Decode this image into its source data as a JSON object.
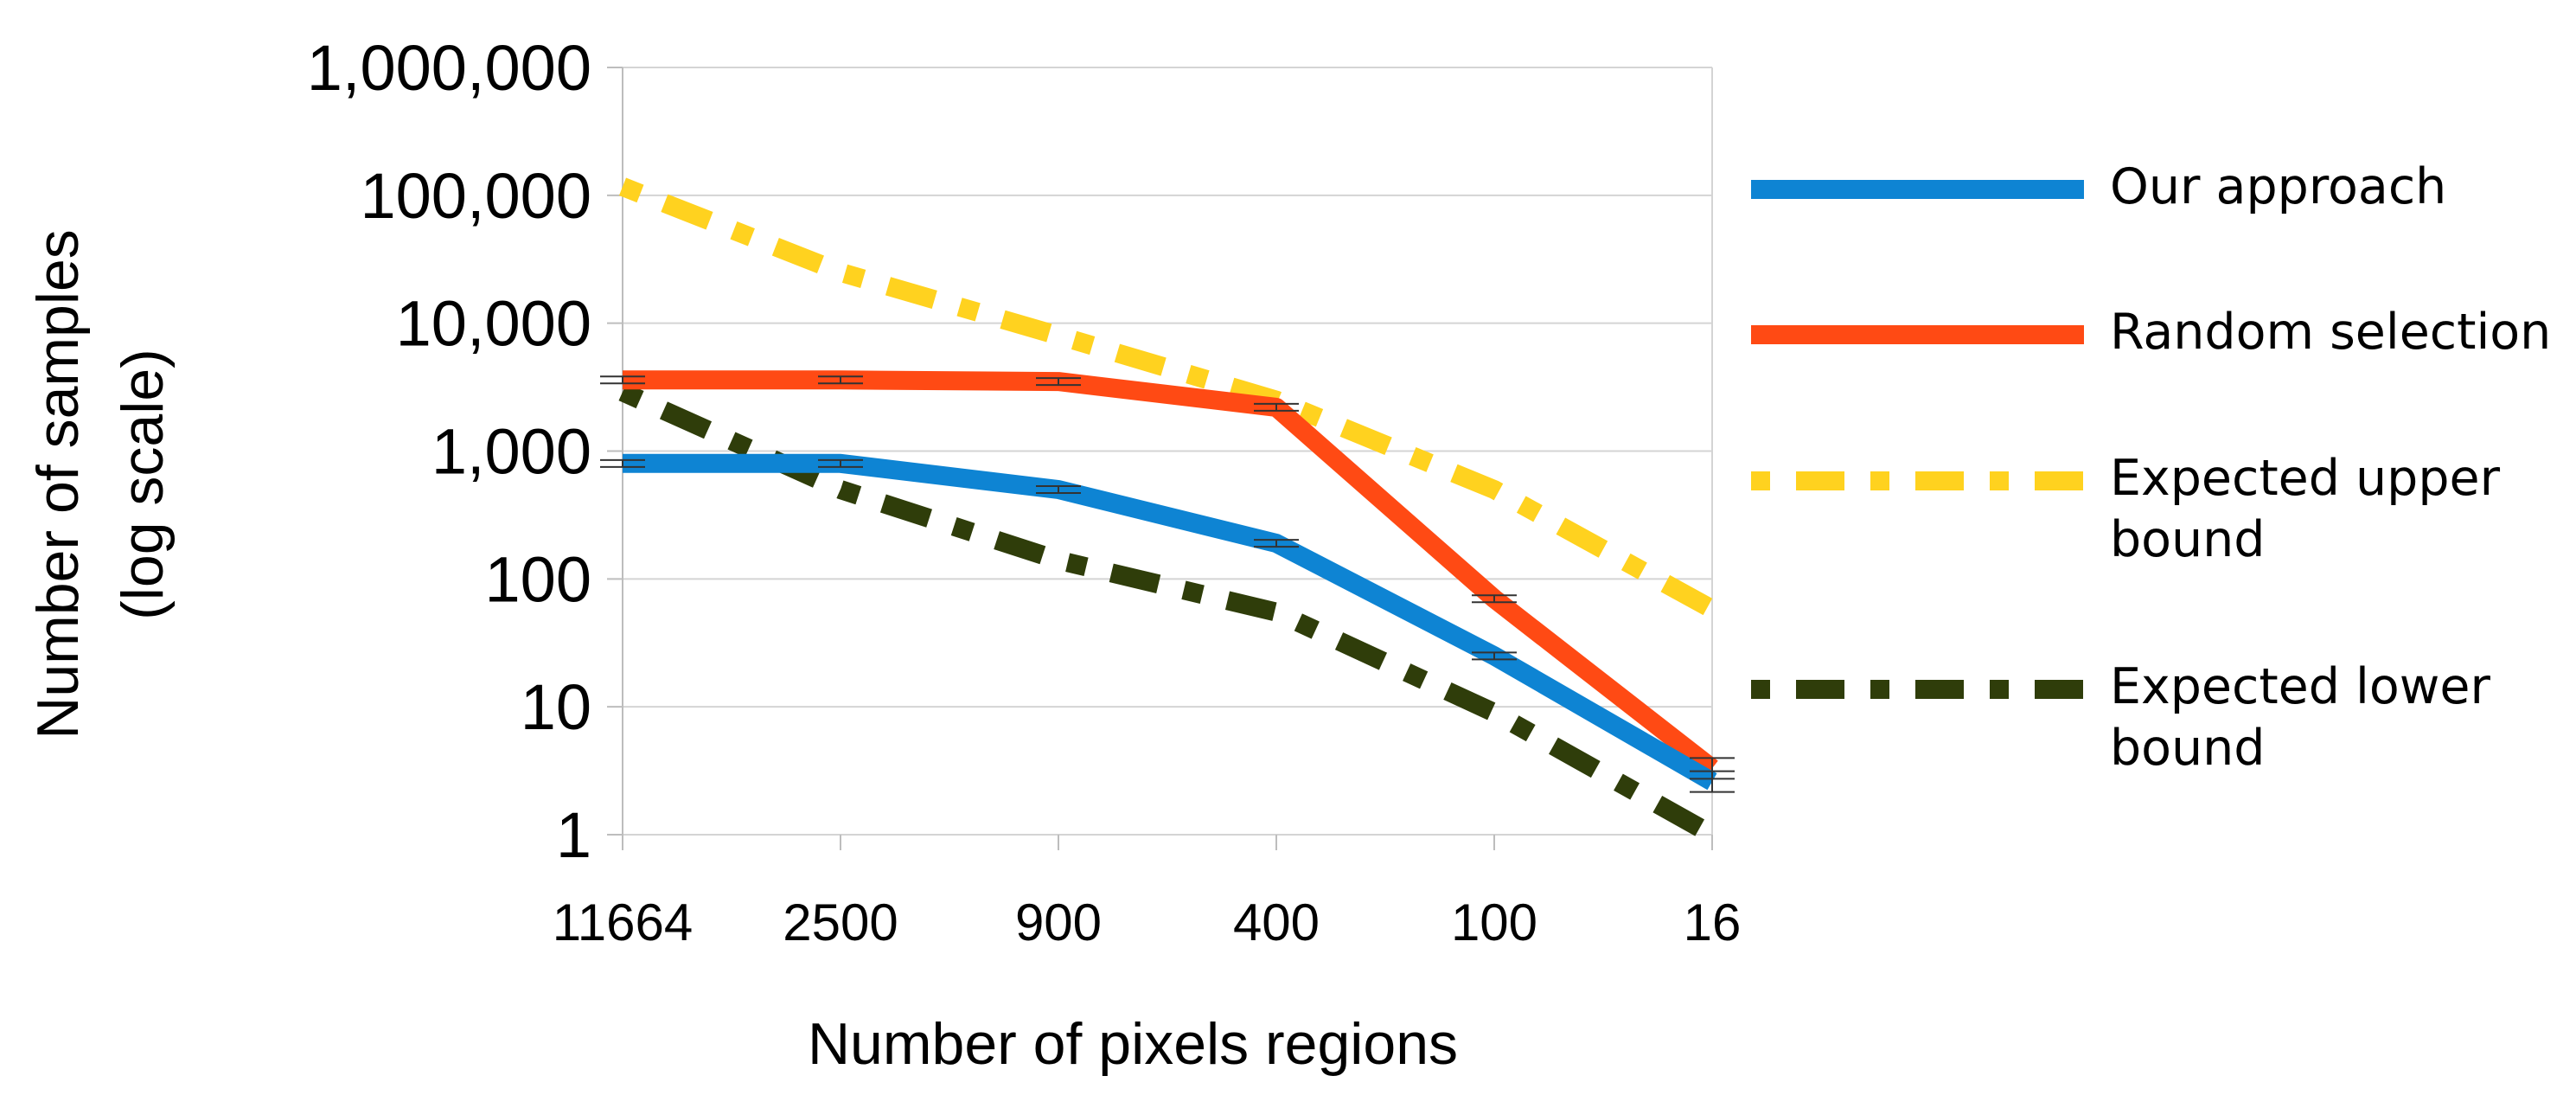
{
  "chart_data": {
    "type": "line",
    "title": "",
    "xlabel": "Number of pixels regions",
    "ylabel_lines": [
      "Number of samples",
      "(log scale)"
    ],
    "yscale": "log",
    "ylim": [
      1,
      1000000
    ],
    "y_ticks": [
      {
        "value": 1,
        "label": "1"
      },
      {
        "value": 10,
        "label": "10"
      },
      {
        "value": 100,
        "label": "100"
      },
      {
        "value": 1000,
        "label": "1,000"
      },
      {
        "value": 10000,
        "label": "10,000"
      },
      {
        "value": 100000,
        "label": "100,000"
      },
      {
        "value": 1000000,
        "label": "1,000,000"
      }
    ],
    "categories": [
      "11664",
      "2500",
      "900",
      "400",
      "100",
      "16"
    ],
    "grid": "horizontal",
    "legend_position": "right",
    "series": [
      {
        "name": "Our approach",
        "legend_lines": [
          "Our approach"
        ],
        "color": "#0e84d3",
        "style": "solid",
        "values": [
          800,
          800,
          500,
          190,
          25,
          2.6
        ],
        "error_bars": true
      },
      {
        "name": "Random selection",
        "legend_lines": [
          "Random selection"
        ],
        "color": "#ff4a14",
        "style": "solid",
        "values": [
          3600,
          3600,
          3500,
          2200,
          70,
          3.3
        ],
        "error_bars": true
      },
      {
        "name": "Expected upper bound",
        "legend_lines": [
          "Expected upper",
          "bound"
        ],
        "color": "#ffd21f",
        "style": "dashed",
        "values": [
          117000,
          25000,
          8000,
          2500,
          500,
          58
        ],
        "error_bars": false
      },
      {
        "name": "Expected lower bound",
        "legend_lines": [
          "Expected lower",
          "bound"
        ],
        "color": "#2f3d0a",
        "style": "dashed",
        "values": [
          2900,
          500,
          140,
          55,
          9,
          1
        ],
        "error_bars": false
      }
    ]
  }
}
